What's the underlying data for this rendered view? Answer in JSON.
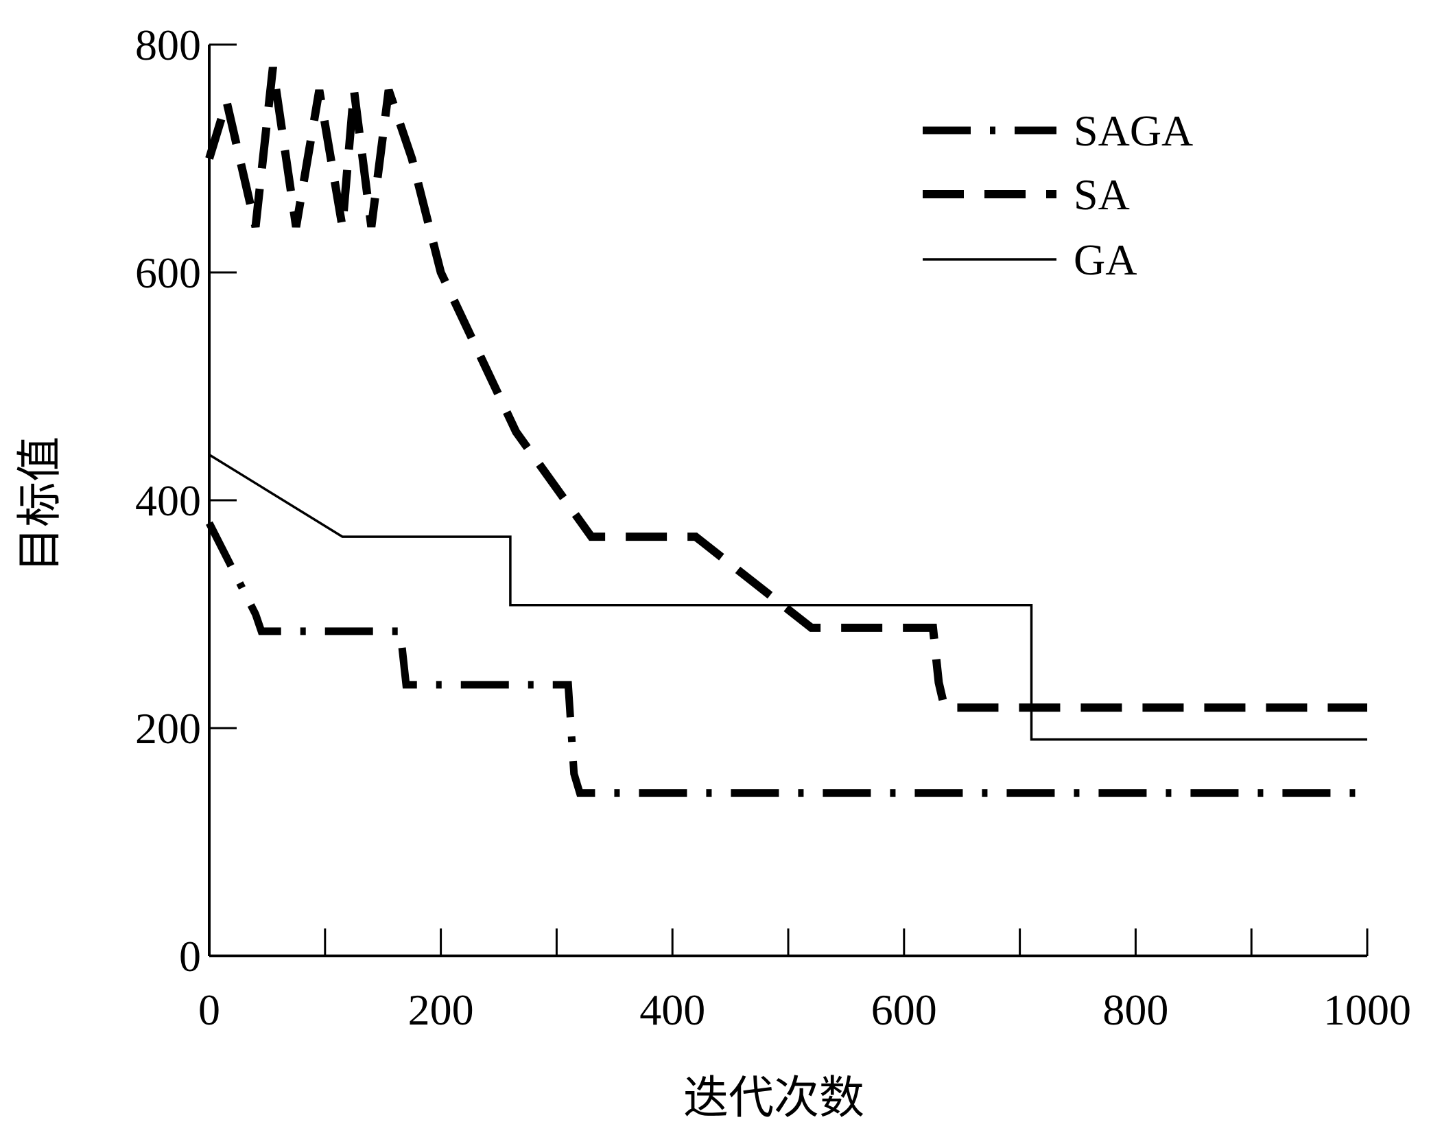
{
  "chart_data": {
    "type": "line",
    "title": "",
    "xlabel": "迭代次数",
    "ylabel": "目标值",
    "xlim": [
      0,
      1000
    ],
    "ylim": [
      0,
      800
    ],
    "xticks": [
      0,
      200,
      400,
      600,
      800,
      1000
    ],
    "yticks": [
      0,
      200,
      400,
      600,
      800
    ],
    "xtick_labels": [
      "0",
      "200",
      "400",
      "600",
      "800",
      "1000"
    ],
    "ytick_labels": [
      "0",
      "200",
      "400",
      "600",
      "800"
    ],
    "x_minor_ticks": [
      100,
      300,
      500,
      700,
      900
    ],
    "grid": false,
    "legend_position": "top-right",
    "series": [
      {
        "name": "SAGA",
        "style": "dash-dot",
        "color": "#000000",
        "x": [
          0,
          40,
          45,
          160,
          165,
          170,
          180,
          182,
          310,
          315,
          320,
          330,
          1000
        ],
        "y": [
          380,
          300,
          285,
          285,
          285,
          238,
          238,
          238,
          238,
          160,
          143,
          143,
          143
        ]
      },
      {
        "name": "SA",
        "style": "dashed",
        "color": "#000000",
        "x": [
          0,
          15,
          40,
          55,
          75,
          95,
          115,
          125,
          140,
          155,
          175,
          200,
          265,
          330,
          420,
          520,
          625,
          630,
          635,
          1000
        ],
        "y": [
          700,
          750,
          640,
          780,
          640,
          760,
          640,
          760,
          640,
          760,
          700,
          600,
          460,
          368,
          368,
          288,
          288,
          240,
          218,
          218
        ]
      },
      {
        "name": "GA",
        "style": "solid",
        "color": "#000000",
        "x": [
          0,
          115,
          260,
          260,
          710,
          710,
          1000
        ],
        "y": [
          440,
          368,
          368,
          308,
          308,
          190,
          190
        ]
      }
    ]
  }
}
